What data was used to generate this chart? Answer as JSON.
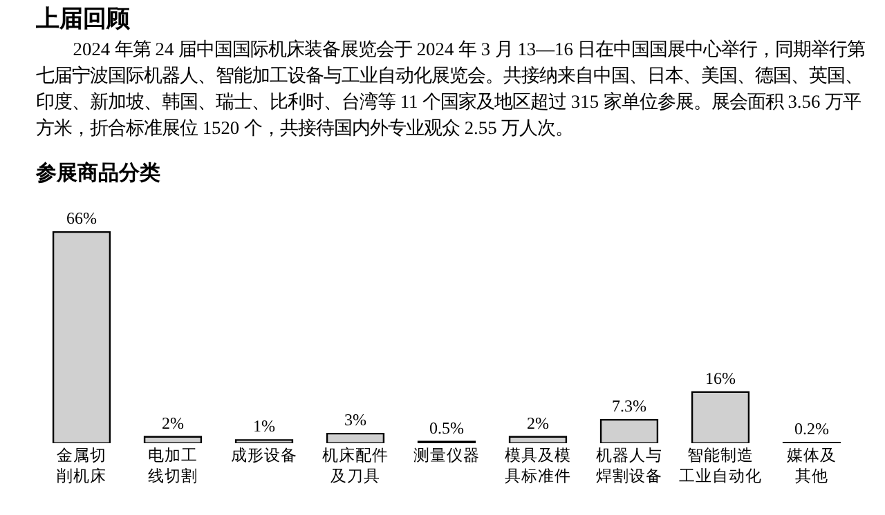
{
  "chart_data": {
    "type": "bar",
    "title": "上届回顾",
    "subtitle": "2024 年第 24 届中国国际机床装备展览会于 2024 年 3 月 13—16 日在中国国展中心举行，同期举行第七届宁波国际机器人、智能加工设备与工业自动化展览会。共接纳来自中国、日本、美国、德国、英国、印度、新加坡、韩国、瑞士、比利时、台湾等 11 个国家及地区超过 315 家单位参展。展会面积 3.56 万平方米，折合标准展位 1520 个，共接待国内外专业观众 2.55 万人次。",
    "annotations": [
      "参展商品分类"
    ],
    "categories": [
      "金属切削机床",
      "电加工线切割",
      "成形设备",
      "机床配件及刀具",
      "测量仪器",
      "模具及模具标准件",
      "机器人与焊割设备",
      "智能制造工业自动化",
      "媒体及其他"
    ],
    "values": [
      66,
      2,
      1,
      3,
      0.5,
      2,
      7.3,
      16,
      0.2
    ],
    "value_labels": [
      "66%",
      "2%",
      "1%",
      "3%",
      "0.5%",
      "2%",
      "7.3%",
      "16%",
      "0.2%"
    ],
    "color": "#d0d0d0",
    "grid": false,
    "legend": false
  }
}
